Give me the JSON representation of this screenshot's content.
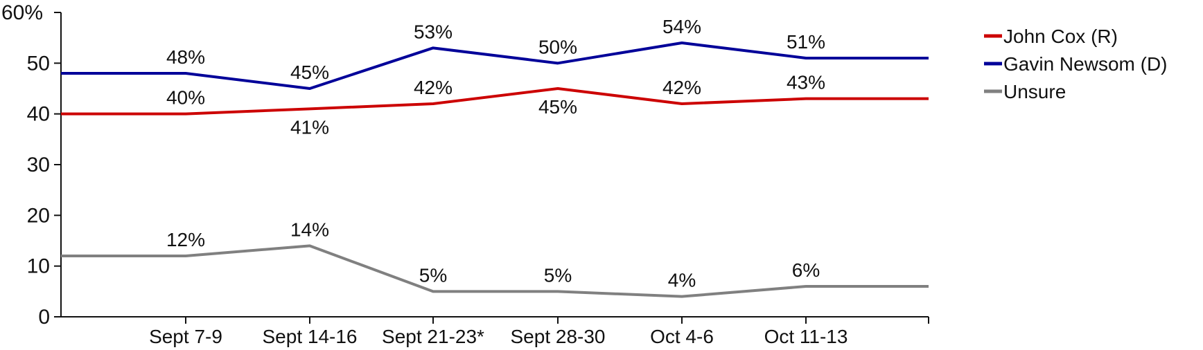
{
  "chart_data": {
    "type": "line",
    "categories": [
      "Sept 7-9",
      "Sept 14-16",
      "Sept 21-23*",
      "Sept 28-30",
      "Oct 4-6",
      "Oct 11-13"
    ],
    "y_tick_labels": [
      "0",
      "10",
      "20",
      "30",
      "40",
      "50",
      "60%"
    ],
    "ylim": [
      0,
      60
    ],
    "grid": false,
    "legend_position": "top-right",
    "series": [
      {
        "name": "John Cox (R)",
        "color": "#cc0000",
        "values": [
          40,
          41,
          42,
          45,
          42,
          43
        ],
        "labels": [
          "40%",
          "41%",
          "42%",
          "45%",
          "42%",
          "43%"
        ],
        "label_side": [
          "above",
          "below",
          "above",
          "below",
          "above",
          "above"
        ]
      },
      {
        "name": "Gavin Newsom (D)",
        "color": "#000099",
        "values": [
          48,
          45,
          53,
          50,
          54,
          51
        ],
        "labels": [
          "48%",
          "45%",
          "53%",
          "50%",
          "54%",
          "51%"
        ],
        "label_side": [
          "above",
          "above",
          "above",
          "above",
          "above",
          "above"
        ]
      },
      {
        "name": "Unsure",
        "color": "#808080",
        "values": [
          12,
          14,
          5,
          5,
          4,
          6
        ],
        "labels": [
          "12%",
          "14%",
          "5%",
          "5%",
          "4%",
          "6%"
        ],
        "label_side": [
          "above",
          "above",
          "above",
          "above",
          "above",
          "above"
        ]
      }
    ]
  }
}
